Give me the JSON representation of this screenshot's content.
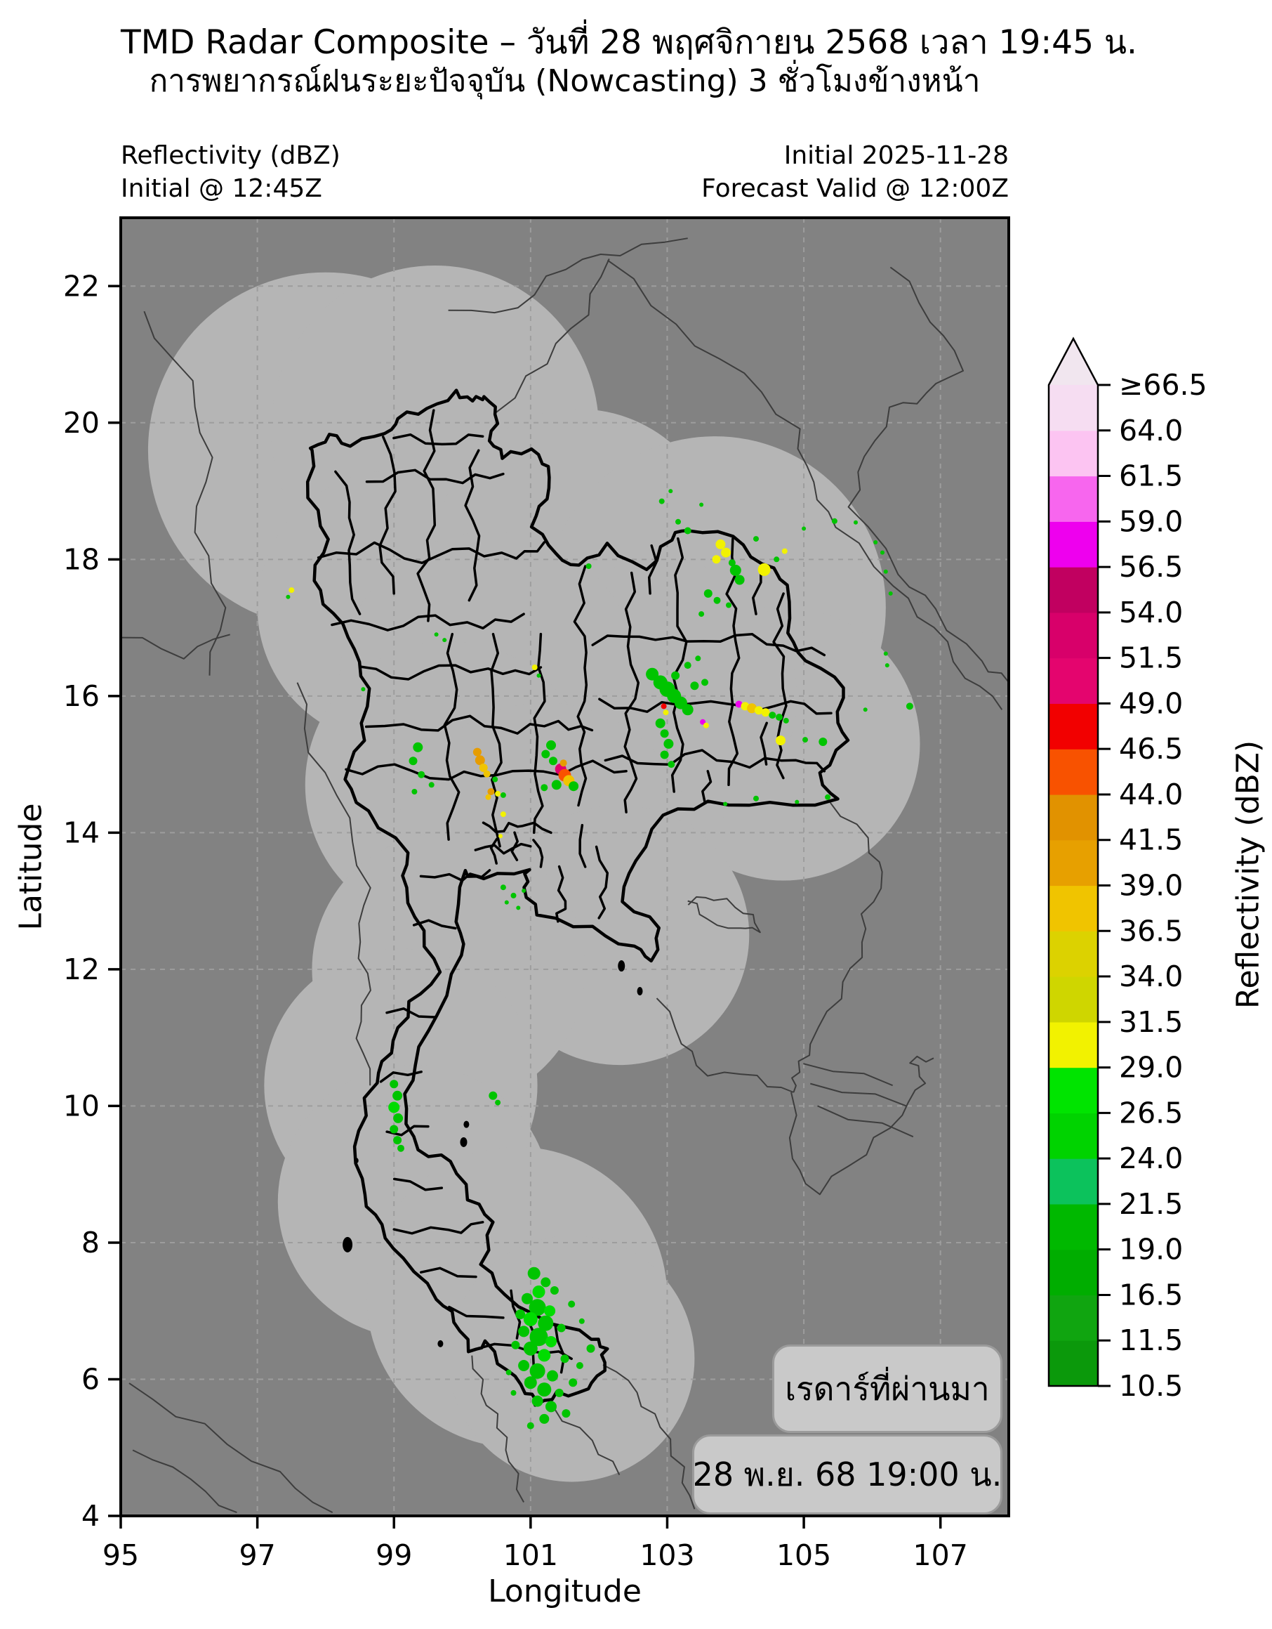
{
  "figure": {
    "title": "TMD Radar Composite – วันที่ 28 พฤศจิกายน 2568 เวลา 19:45 น.",
    "subtitle": "การพยากรณ์ฝนระยะปัจจุบัน (Nowcasting) 3 ชั่วโมงข้างหน้า"
  },
  "header": {
    "left_line1": "Reflectivity (dBZ)",
    "left_line2": "Initial @ 12:45Z",
    "right_line1": "Initial 2025-11-28",
    "right_line2": "Forecast Valid @ 12:00Z"
  },
  "axes": {
    "xlabel": "Longitude",
    "ylabel": "Latitude",
    "xlim": [
      95,
      108
    ],
    "ylim": [
      4,
      23
    ],
    "x_ticks": [
      95,
      97,
      99,
      101,
      103,
      105,
      107
    ],
    "y_ticks": [
      4,
      6,
      8,
      10,
      12,
      14,
      16,
      18,
      20,
      22
    ],
    "grid": "dashed"
  },
  "colorbar": {
    "label": "Reflectivity (dBZ)",
    "tick_labels": [
      "10.5",
      "11.5",
      "16.5",
      "19.0",
      "21.5",
      "24.0",
      "26.5",
      "29.0",
      "31.5",
      "34.0",
      "36.5",
      "39.0",
      "41.5",
      "44.0",
      "46.5",
      "49.0",
      "51.5",
      "54.0",
      "56.5",
      "59.0",
      "61.5",
      "64.0",
      "≥66.5"
    ],
    "colors": [
      "#0b990b",
      "#10a510",
      "#00ad00",
      "#00b800",
      "#0cc25c",
      "#00d300",
      "#00e400",
      "#f2f200",
      "#cfd600",
      "#dcd200",
      "#f0c400",
      "#e7a000",
      "#e19200",
      "#f85200",
      "#f20000",
      "#e4056e",
      "#d8006a",
      "#c10060",
      "#ee00ee",
      "#f766ee",
      "#fcc4f2",
      "#f6ddf2"
    ],
    "over_color": "#f1e6ef"
  },
  "overlay": {
    "history_label": "เรดาร์ที่ผ่านมา",
    "timestamp_label": "28 พ.ย. 68 19:00 น."
  },
  "map_data": {
    "type": "radar_composite_map",
    "colors": {
      "background": "#828282",
      "coverage": "#b5b5b5",
      "grid": "#9d9d9d",
      "country_border": "#3d3d3d",
      "province_border": "#000000",
      "box_fill": "#c9c9c9",
      "box_border": "#9b9b9b"
    },
    "coverage_circles": [
      [
        98.0,
        19.6,
        2.6
      ],
      [
        99.6,
        19.9,
        2.4
      ],
      [
        99.0,
        17.3,
        2.0
      ],
      [
        101.7,
        18.1,
        2.1
      ],
      [
        103.7,
        17.3,
        2.5
      ],
      [
        104.7,
        15.3,
        2.0
      ],
      [
        102.9,
        16.0,
        2.0
      ],
      [
        100.4,
        16.2,
        2.2
      ],
      [
        99.8,
        14.7,
        2.1
      ],
      [
        101.2,
        13.7,
        2.2
      ],
      [
        102.3,
        12.5,
        1.9
      ],
      [
        99.8,
        12.0,
        2.0
      ],
      [
        99.1,
        10.3,
        2.0
      ],
      [
        99.3,
        8.6,
        2.0
      ],
      [
        100.8,
        7.2,
        2.2
      ],
      [
        101.6,
        6.3,
        1.8
      ]
    ],
    "echo_palette": {
      "g1": "#0da40d",
      "g2": "#00c400",
      "g3": "#00dc00",
      "sg": "#0cc45c",
      "y": "#f2f200",
      "gd": "#f0c400",
      "o": "#e69c00",
      "od": "#fa5200",
      "r": "#f20000",
      "cr": "#e2006e",
      "m": "#ee00ee"
    },
    "echoes": [
      [
        101.05,
        7.55,
        9,
        "g2"
      ],
      [
        101.22,
        7.42,
        7,
        "g2"
      ],
      [
        101.12,
        7.28,
        9,
        "g3"
      ],
      [
        101.35,
        7.3,
        6,
        "g2"
      ],
      [
        100.95,
        7.18,
        8,
        "g2"
      ],
      [
        101.1,
        7.05,
        12,
        "g2"
      ],
      [
        101.28,
        7.0,
        8,
        "g3"
      ],
      [
        100.85,
        6.95,
        7,
        "g2"
      ],
      [
        101.0,
        6.88,
        10,
        "g3"
      ],
      [
        101.22,
        6.82,
        11,
        "g2"
      ],
      [
        101.45,
        6.75,
        6,
        "g2"
      ],
      [
        100.9,
        6.7,
        8,
        "g2"
      ],
      [
        101.12,
        6.62,
        13,
        "g2"
      ],
      [
        101.3,
        6.55,
        8,
        "g3"
      ],
      [
        100.78,
        6.5,
        6,
        "g2"
      ],
      [
        101.0,
        6.45,
        10,
        "g2"
      ],
      [
        101.2,
        6.35,
        9,
        "g3"
      ],
      [
        101.5,
        6.3,
        6,
        "g2"
      ],
      [
        100.9,
        6.2,
        8,
        "g2"
      ],
      [
        101.1,
        6.12,
        11,
        "g2"
      ],
      [
        101.32,
        6.05,
        8,
        "g2"
      ],
      [
        101.0,
        5.95,
        9,
        "g2"
      ],
      [
        101.2,
        5.85,
        10,
        "g2"
      ],
      [
        101.42,
        5.8,
        6,
        "g2"
      ],
      [
        101.1,
        5.68,
        8,
        "g2"
      ],
      [
        101.3,
        5.6,
        8,
        "g2"
      ],
      [
        101.52,
        5.5,
        6,
        "g2"
      ],
      [
        101.2,
        5.42,
        7,
        "g2"
      ],
      [
        101.0,
        5.32,
        5,
        "g2"
      ],
      [
        101.62,
        5.95,
        6,
        "g2"
      ],
      [
        101.72,
        6.2,
        5,
        "g2"
      ],
      [
        101.88,
        6.45,
        6,
        "g2"
      ],
      [
        100.68,
        6.1,
        4,
        "g2"
      ],
      [
        100.75,
        5.8,
        4,
        "g2"
      ],
      [
        101.6,
        7.1,
        5,
        "g2"
      ],
      [
        101.75,
        6.85,
        4,
        "g2"
      ],
      [
        99.0,
        10.32,
        6,
        "g2"
      ],
      [
        99.05,
        10.15,
        7,
        "g2"
      ],
      [
        99.0,
        9.98,
        8,
        "g3"
      ],
      [
        99.06,
        9.82,
        7,
        "g2"
      ],
      [
        99.0,
        9.66,
        6,
        "g2"
      ],
      [
        99.05,
        9.5,
        6,
        "g2"
      ],
      [
        99.1,
        9.38,
        5,
        "g2"
      ],
      [
        100.45,
        10.15,
        6,
        "g2"
      ],
      [
        100.52,
        10.05,
        4,
        "g2"
      ],
      [
        100.6,
        13.2,
        4,
        "g2"
      ],
      [
        100.75,
        13.08,
        4,
        "g2"
      ],
      [
        100.65,
        12.98,
        3,
        "g2"
      ],
      [
        100.82,
        12.9,
        3,
        "g2"
      ],
      [
        100.9,
        13.15,
        3,
        "g2"
      ],
      [
        100.22,
        15.18,
        6,
        "o"
      ],
      [
        100.26,
        15.06,
        7,
        "o"
      ],
      [
        100.31,
        14.95,
        6,
        "gd"
      ],
      [
        100.36,
        14.86,
        5,
        "gd"
      ],
      [
        100.42,
        14.6,
        5,
        "o"
      ],
      [
        100.38,
        14.52,
        4,
        "gd"
      ],
      [
        99.35,
        15.25,
        7,
        "g2"
      ],
      [
        99.28,
        15.05,
        6,
        "g2"
      ],
      [
        99.4,
        14.85,
        5,
        "g2"
      ],
      [
        99.55,
        14.7,
        4,
        "g2"
      ],
      [
        99.3,
        14.6,
        4,
        "g2"
      ],
      [
        100.48,
        14.78,
        4,
        "g2"
      ],
      [
        100.6,
        14.55,
        4,
        "g2"
      ],
      [
        100.52,
        14.57,
        4,
        "y"
      ],
      [
        100.6,
        14.27,
        4,
        "y"
      ],
      [
        100.56,
        13.95,
        3,
        "y"
      ],
      [
        101.06,
        16.42,
        4,
        "y"
      ],
      [
        101.12,
        16.3,
        3,
        "g2"
      ],
      [
        99.62,
        16.9,
        3,
        "g2"
      ],
      [
        99.74,
        16.82,
        3,
        "g2"
      ],
      [
        101.3,
        15.28,
        7,
        "g2"
      ],
      [
        101.22,
        15.15,
        6,
        "g2"
      ],
      [
        101.33,
        15.05,
        6,
        "g2"
      ],
      [
        101.44,
        14.93,
        8,
        "cr"
      ],
      [
        101.5,
        14.84,
        9,
        "od"
      ],
      [
        101.56,
        14.76,
        8,
        "gd"
      ],
      [
        101.38,
        14.7,
        7,
        "g2"
      ],
      [
        101.63,
        14.68,
        7,
        "g2"
      ],
      [
        101.2,
        14.66,
        5,
        "g2"
      ],
      [
        101.48,
        15.02,
        5,
        "o"
      ],
      [
        102.78,
        16.32,
        9,
        "g2"
      ],
      [
        102.9,
        16.2,
        10,
        "g2"
      ],
      [
        103.0,
        16.1,
        11,
        "g2"
      ],
      [
        103.1,
        16.0,
        10,
        "g2"
      ],
      [
        103.2,
        15.9,
        9,
        "g2"
      ],
      [
        103.3,
        15.8,
        8,
        "g2"
      ],
      [
        103.12,
        16.3,
        6,
        "g2"
      ],
      [
        103.3,
        16.45,
        5,
        "g2"
      ],
      [
        103.45,
        16.55,
        4,
        "g2"
      ],
      [
        103.4,
        16.15,
        6,
        "g2"
      ],
      [
        103.55,
        16.2,
        5,
        "g2"
      ],
      [
        102.95,
        15.85,
        4,
        "r"
      ],
      [
        102.98,
        15.76,
        4,
        "y"
      ],
      [
        102.9,
        15.6,
        7,
        "g2"
      ],
      [
        102.96,
        15.45,
        6,
        "g2"
      ],
      [
        103.02,
        15.3,
        7,
        "g2"
      ],
      [
        102.96,
        15.14,
        6,
        "g2"
      ],
      [
        103.06,
        15.0,
        5,
        "g2"
      ],
      [
        103.52,
        15.62,
        4,
        "m"
      ],
      [
        103.57,
        15.57,
        4,
        "y"
      ],
      [
        104.05,
        15.88,
        5,
        "m"
      ],
      [
        104.14,
        15.85,
        6,
        "y"
      ],
      [
        104.24,
        15.82,
        7,
        "gd"
      ],
      [
        104.34,
        15.79,
        6,
        "y"
      ],
      [
        104.44,
        15.76,
        6,
        "y"
      ],
      [
        104.54,
        15.72,
        5,
        "g2"
      ],
      [
        104.64,
        15.69,
        5,
        "g2"
      ],
      [
        104.74,
        15.64,
        4,
        "g2"
      ],
      [
        104.66,
        15.35,
        7,
        "y"
      ],
      [
        105.28,
        15.33,
        6,
        "g2"
      ],
      [
        105.02,
        15.36,
        4,
        "g2"
      ],
      [
        103.78,
        18.22,
        7,
        "y"
      ],
      [
        103.86,
        18.1,
        7,
        "y"
      ],
      [
        103.72,
        18.0,
        6,
        "y"
      ],
      [
        103.95,
        17.95,
        5,
        "g2"
      ],
      [
        104.0,
        17.84,
        8,
        "g2"
      ],
      [
        104.06,
        17.7,
        7,
        "g2"
      ],
      [
        104.42,
        17.85,
        9,
        "y"
      ],
      [
        104.72,
        18.12,
        4,
        "y"
      ],
      [
        104.6,
        18.0,
        4,
        "g2"
      ],
      [
        103.6,
        17.5,
        6,
        "g2"
      ],
      [
        103.73,
        17.4,
        5,
        "g2"
      ],
      [
        103.5,
        17.2,
        4,
        "g2"
      ],
      [
        103.9,
        17.33,
        4,
        "g2"
      ],
      [
        103.3,
        18.42,
        5,
        "g2"
      ],
      [
        103.16,
        18.55,
        4,
        "g2"
      ],
      [
        102.92,
        18.85,
        4,
        "g2"
      ],
      [
        103.05,
        19.0,
        3,
        "g2"
      ],
      [
        103.5,
        18.8,
        3,
        "g2"
      ],
      [
        104.3,
        18.3,
        4,
        "g2"
      ],
      [
        105.0,
        18.45,
        3,
        "g2"
      ],
      [
        105.45,
        18.56,
        4,
        "g2"
      ],
      [
        105.76,
        18.54,
        3,
        "g2"
      ],
      [
        106.05,
        18.25,
        3,
        "g2"
      ],
      [
        106.15,
        18.1,
        3,
        "g2"
      ],
      [
        106.2,
        17.82,
        3,
        "g2"
      ],
      [
        106.27,
        17.5,
        3,
        "g2"
      ],
      [
        106.2,
        16.62,
        3,
        "g2"
      ],
      [
        106.22,
        16.45,
        3,
        "g2"
      ],
      [
        106.55,
        15.85,
        5,
        "g2"
      ],
      [
        105.9,
        15.8,
        3,
        "g2"
      ],
      [
        104.3,
        14.5,
        4,
        "g2"
      ],
      [
        104.9,
        14.45,
        3,
        "g2"
      ],
      [
        105.35,
        14.52,
        4,
        "g2"
      ],
      [
        103.85,
        14.42,
        3,
        "g2"
      ],
      [
        101.85,
        17.9,
        4,
        "g2"
      ],
      [
        97.5,
        17.55,
        4,
        "y"
      ],
      [
        97.45,
        17.45,
        3,
        "g2"
      ],
      [
        98.55,
        16.1,
        3,
        "g2"
      ]
    ]
  }
}
